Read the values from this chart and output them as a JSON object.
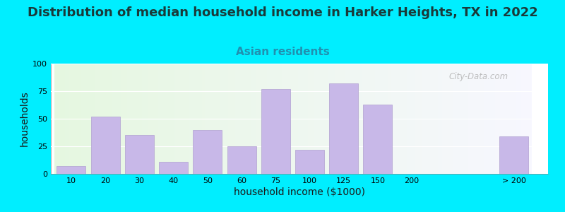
{
  "title": "Distribution of median household income in Harker Heights, TX in 2022",
  "subtitle": "Asian residents",
  "xlabel": "household income ($1000)",
  "ylabel": "households",
  "bar_labels": [
    "10",
    "20",
    "30",
    "40",
    "50",
    "60",
    "75",
    "100",
    "125",
    "150",
    "200",
    "> 200"
  ],
  "bar_values": [
    7,
    52,
    35,
    11,
    40,
    25,
    77,
    22,
    82,
    63,
    0,
    34
  ],
  "bar_color": "#c8b8e8",
  "bar_edge_color": "#b0a0d0",
  "ylim": [
    0,
    100
  ],
  "yticks": [
    0,
    25,
    50,
    75,
    100
  ],
  "background_outer": "#00eeff",
  "title_fontsize": 13,
  "subtitle_fontsize": 11,
  "subtitle_color": "#2090b0",
  "axis_label_fontsize": 10,
  "tick_fontsize": 8,
  "watermark": "City-Data.com"
}
